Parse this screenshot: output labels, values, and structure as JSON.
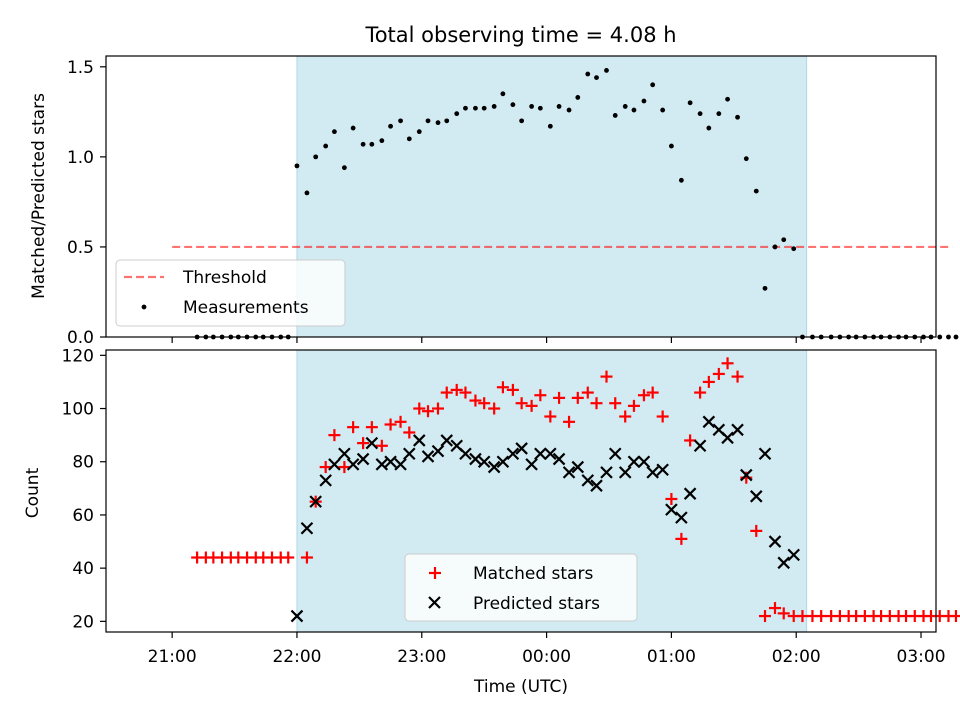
{
  "title": "Total observing time = 4.08 h",
  "colors": {
    "shade": "#add8e6",
    "threshold": "#ff0000",
    "measurement": "#000000",
    "matched": "#ff0000",
    "predicted": "#000000"
  },
  "chart_data": [
    {
      "type": "scatter",
      "ylabel": "Matched/Predicted stars",
      "ylim": [
        0,
        1.56
      ],
      "yticks": [
        "0.0",
        "0.5",
        "1.0",
        "1.5"
      ],
      "xlim": [
        -0.53,
        6.12
      ],
      "x_hours": [
        0.2,
        0.27,
        0.33,
        0.4,
        0.47,
        0.53,
        0.6,
        0.67,
        0.73,
        0.8,
        0.87,
        0.93,
        1.0,
        1.08,
        1.15,
        1.23,
        1.3,
        1.38,
        1.45,
        1.53,
        1.6,
        1.68,
        1.75,
        1.83,
        1.9,
        1.98,
        2.05,
        2.13,
        2.2,
        2.28,
        2.35,
        2.43,
        2.5,
        2.58,
        2.65,
        2.73,
        2.8,
        2.88,
        2.95,
        3.03,
        3.1,
        3.18,
        3.25,
        3.33,
        3.4,
        3.48,
        3.55,
        3.63,
        3.7,
        3.78,
        3.85,
        3.93,
        4.0,
        4.08,
        4.15,
        4.23,
        4.3,
        4.38,
        4.45,
        4.53,
        4.6,
        4.68,
        4.75,
        4.83,
        4.9,
        4.98,
        5.05,
        5.13,
        5.2,
        5.28,
        5.35,
        5.42,
        5.48,
        5.55,
        5.62,
        5.68,
        5.75,
        5.82,
        5.88,
        5.95,
        6.02,
        6.08,
        6.15,
        6.22,
        6.28
      ],
      "x": [
        "21:09",
        "21:16",
        "21:20",
        "21:24",
        "21:28",
        "21:32",
        "21:36",
        "21:40",
        "21:44",
        "21:48",
        "21:52",
        "21:56",
        "22:00",
        "22:05",
        "22:09",
        "22:14",
        "22:18",
        "22:23",
        "22:27",
        "22:32",
        "22:36",
        "22:41",
        "22:45",
        "22:50",
        "22:54",
        "22:59",
        "23:03",
        "23:08",
        "23:12",
        "23:17",
        "23:21",
        "23:26",
        "23:30",
        "23:35",
        "23:39",
        "23:44",
        "23:48",
        "23:53",
        "23:57",
        "00:02",
        "00:06",
        "00:11",
        "00:15",
        "00:20",
        "00:24",
        "00:29",
        "00:33",
        "00:38",
        "00:42",
        "00:47",
        "00:51",
        "00:56",
        "01:00",
        "01:05",
        "01:09",
        "01:14",
        "01:18",
        "01:23",
        "01:27",
        "01:32",
        "01:36",
        "01:41",
        "01:45",
        "01:50",
        "01:54",
        "01:59",
        "02:03",
        "02:08",
        "02:12",
        "02:17",
        "02:21",
        "02:25",
        "02:29",
        "02:33",
        "02:37",
        "02:41",
        "02:45",
        "02:49",
        "02:53",
        "02:57",
        "03:01",
        "03:05",
        "03:09",
        "03:13",
        "03:17"
      ],
      "threshold": {
        "value": 0.5,
        "x_range": [
          "21:00",
          "03:00"
        ]
      },
      "shaded_region": [
        "22:00",
        "02:05"
      ],
      "series": [
        {
          "name": "Measurements",
          "y": [
            0,
            0,
            0,
            0,
            0,
            0,
            0,
            0,
            0,
            0,
            0,
            0,
            0.95,
            0.8,
            1.0,
            1.06,
            1.14,
            0.94,
            1.16,
            1.07,
            1.07,
            1.09,
            1.17,
            1.2,
            1.1,
            1.14,
            1.2,
            1.19,
            1.2,
            1.24,
            1.27,
            1.27,
            1.27,
            1.28,
            1.35,
            1.29,
            1.2,
            1.28,
            1.27,
            1.17,
            1.28,
            1.26,
            1.33,
            1.46,
            1.44,
            1.48,
            1.23,
            1.28,
            1.26,
            1.31,
            1.4,
            1.26,
            1.06,
            0.87,
            1.3,
            1.24,
            1.16,
            1.24,
            1.32,
            1.22,
            0.99,
            0.81,
            0.27,
            0.5,
            0.54,
            0.49,
            0,
            0,
            0,
            0,
            0,
            0,
            0,
            0,
            0,
            0,
            0,
            0,
            0,
            0,
            0,
            0,
            0,
            0,
            0
          ]
        }
      ],
      "legend": [
        "Threshold",
        "Measurements"
      ],
      "legend_position": "lower-left"
    },
    {
      "type": "scatter",
      "xlabel": "Time (UTC)",
      "ylabel": "Count",
      "ylim": [
        16,
        122
      ],
      "yticks": [
        "20",
        "40",
        "60",
        "80",
        "100",
        "120"
      ],
      "xticks": [
        "21:00",
        "22:00",
        "23:00",
        "00:00",
        "01:00",
        "02:00",
        "03:00"
      ],
      "series": [
        {
          "name": "Matched stars",
          "y": [
            44,
            44,
            44,
            44,
            44,
            44,
            44,
            44,
            44,
            44,
            44,
            44,
            null,
            44,
            65,
            78,
            90,
            78,
            93,
            87,
            93,
            86,
            94,
            95,
            91,
            100,
            99,
            100,
            106,
            107,
            106,
            103,
            102,
            100,
            108,
            107,
            102,
            101,
            105,
            97,
            104,
            95,
            104,
            106,
            102,
            112,
            102,
            97,
            101,
            105,
            106,
            97,
            66,
            51,
            88,
            106,
            110,
            113,
            117,
            112,
            74,
            54,
            22,
            25,
            23,
            22,
            22,
            22,
            22,
            22,
            22,
            22,
            22,
            22,
            22,
            22,
            22,
            22,
            22,
            22,
            22,
            22,
            22,
            22,
            22
          ]
        },
        {
          "name": "Predicted stars",
          "y": [
            null,
            null,
            null,
            null,
            null,
            null,
            null,
            null,
            null,
            null,
            null,
            null,
            22,
            55,
            65,
            73,
            79,
            83,
            79,
            81,
            87,
            79,
            80,
            79,
            83,
            88,
            82,
            84,
            88,
            86,
            83,
            81,
            80,
            78,
            80,
            83,
            85,
            79,
            83,
            83,
            81,
            76,
            78,
            73,
            71,
            76,
            83,
            76,
            80,
            80,
            76,
            77,
            62,
            59,
            68,
            86,
            95,
            92,
            89,
            92,
            75,
            67,
            83,
            50,
            42,
            45,
            null,
            null,
            null,
            null,
            null,
            null,
            null,
            null,
            null,
            null,
            null,
            null,
            null,
            null,
            null,
            null,
            null,
            null,
            null
          ]
        }
      ],
      "legend": [
        "Matched stars",
        "Predicted stars"
      ],
      "legend_position": "lower-center"
    }
  ]
}
